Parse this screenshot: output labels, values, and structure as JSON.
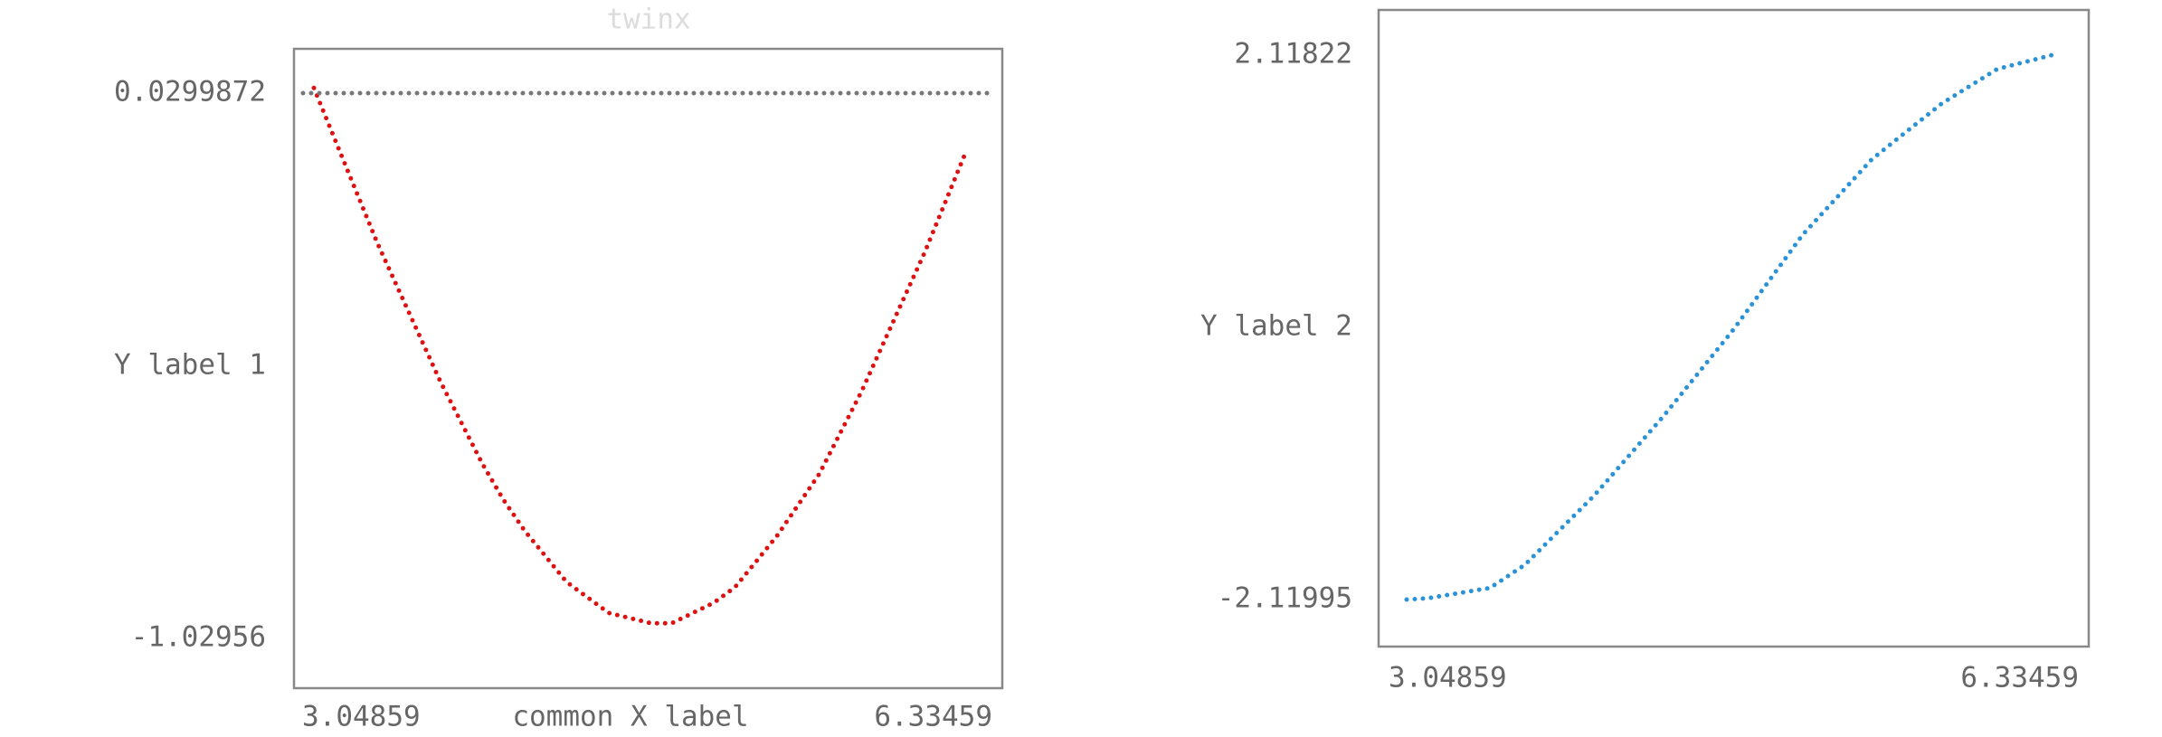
{
  "chart_data": [
    {
      "type": "scatter",
      "title": "twinx",
      "ylabel": "Y label 1",
      "xlabel": "common X label",
      "xlim": [
        3.04859,
        6.33459
      ],
      "ylim": [
        -1.02956,
        0.0299872
      ],
      "xticks": [
        3.04859,
        6.33459
      ],
      "yticks": [
        -1.02956,
        0.0299872
      ],
      "series": [
        {
          "color": "#dd1111",
          "x": [
            3.1,
            3.2,
            3.3,
            3.4,
            3.5,
            3.6,
            3.7,
            3.8,
            3.9,
            4.0,
            4.1,
            4.2,
            4.3,
            4.4,
            4.5,
            4.6,
            4.7,
            4.8,
            4.9,
            5.0,
            5.1,
            5.2,
            5.3,
            5.4,
            5.5,
            5.6,
            5.7,
            5.8,
            5.9,
            6.0,
            6.1,
            6.2
          ],
          "values": [
            0.04,
            -0.06,
            -0.16,
            -0.26,
            -0.35,
            -0.44,
            -0.53,
            -0.61,
            -0.69,
            -0.76,
            -0.82,
            -0.87,
            -0.92,
            -0.95,
            -0.98,
            -0.99,
            -1.0,
            -1.0,
            -0.98,
            -0.96,
            -0.93,
            -0.88,
            -0.83,
            -0.77,
            -0.71,
            -0.63,
            -0.55,
            -0.46,
            -0.37,
            -0.28,
            -0.18,
            -0.08
          ]
        },
        {
          "color": "#777777",
          "x": [
            3.04859,
            6.33459
          ],
          "values": [
            0.0299872,
            0.0299872
          ]
        }
      ]
    },
    {
      "type": "scatter",
      "ylabel": "Y label 2",
      "xlim": [
        3.04859,
        6.33459
      ],
      "ylim": [
        -2.11995,
        2.11822
      ],
      "xticks": [
        3.04859,
        6.33459
      ],
      "yticks": [
        -2.11995,
        2.11822
      ],
      "series": [
        {
          "color": "#2a93d8",
          "x": [
            3.147,
            3.246,
            3.541,
            3.706,
            4.034,
            4.363,
            4.692,
            5.02,
            5.349,
            5.677,
            5.94,
            6.203
          ],
          "values": [
            -2.12,
            -2.11,
            -2.03,
            -1.85,
            -1.31,
            -0.69,
            -0.02,
            0.72,
            1.31,
            1.74,
            2.01,
            2.12
          ]
        }
      ]
    }
  ]
}
